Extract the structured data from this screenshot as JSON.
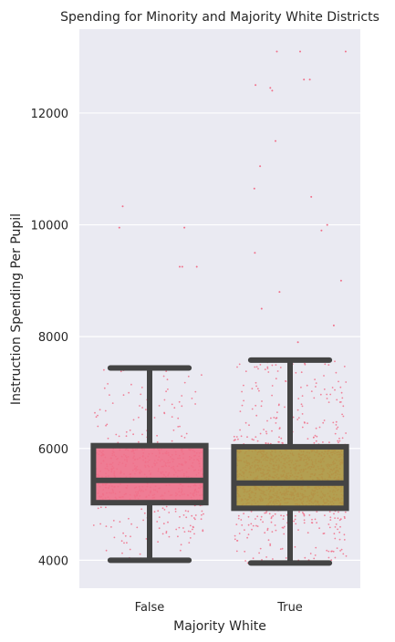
{
  "chart_data": {
    "type": "box",
    "title": "Spending for Minority and Majority White Districts",
    "xlabel": "Majority White",
    "ylabel": "Instruction Spending Per Pupil",
    "categories": [
      "False",
      "True"
    ],
    "yticks": [
      4000,
      6000,
      8000,
      10000,
      12000
    ],
    "ylim": [
      3500,
      13500
    ],
    "grid": true,
    "overlay": "strip",
    "colors": {
      "background": "#eaeaf2",
      "grid": "#ffffff",
      "box_false": "#f0708a",
      "box_true": "#ad973f",
      "box_edge": "#444444",
      "points": "#f0708a"
    },
    "boxes": [
      {
        "category": "False",
        "whisker_low": 4000,
        "q1": 5030,
        "median": 5430,
        "q3": 6050,
        "whisker_high": 7440
      },
      {
        "category": "True",
        "whisker_low": 3950,
        "q1": 4930,
        "median": 5380,
        "q3": 6030,
        "whisker_high": 7580
      }
    ],
    "outliers": [
      {
        "category": "False",
        "values": [
          9250,
          9950,
          10330,
          9250,
          9950,
          9250
        ]
      },
      {
        "category": "True",
        "values": [
          13100,
          13100,
          13100,
          12450,
          12600,
          12600,
          12500,
          12400,
          11500,
          11050,
          10650,
          10500,
          10000,
          9900,
          9500,
          9000,
          8800,
          8500,
          8200,
          7900
        ]
      }
    ]
  }
}
